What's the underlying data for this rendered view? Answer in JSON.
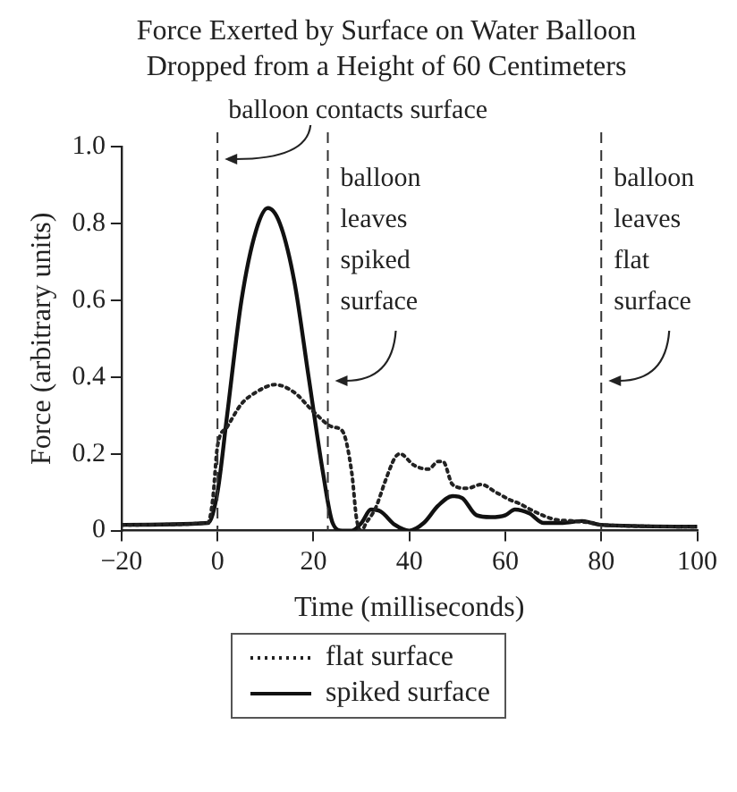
{
  "chart_data": {
    "type": "line",
    "title": "Force Exerted by Surface on Water Balloon Dropped from a Height of 60 Centimeters",
    "xlabel": "Time (milliseconds)",
    "ylabel": "Force (arbitrary units)",
    "xlim": [
      -20,
      100
    ],
    "xticks": [
      {
        "value": -20,
        "label": "−20"
      },
      0,
      20,
      40,
      60,
      80,
      100
    ],
    "ylim": [
      0,
      1
    ],
    "yticks": [
      0,
      0.2,
      0.4,
      0.6,
      0.8,
      {
        "value": 1,
        "label": "1.0"
      }
    ],
    "grid": false,
    "legend": "bottom",
    "marker": "none",
    "ref_lines": [
      {
        "axis": "x",
        "value": 0,
        "label": "balloon contacts surface",
        "line_style": "dashed",
        "color": "#333333"
      },
      {
        "axis": "x",
        "value": 23,
        "label": "balloon leaves spiked surface",
        "line_style": "dashed",
        "color": "#333333"
      },
      {
        "axis": "x",
        "value": 80,
        "label": "balloon leaves flat surface",
        "line_style": "dashed",
        "color": "#333333"
      }
    ],
    "series": [
      {
        "name": "flat surface",
        "color": "#222222",
        "line_style": "dotted",
        "x": [
          -20,
          -2,
          -1,
          0,
          2,
          5,
          8,
          12,
          16,
          20,
          24,
          26,
          28,
          29,
          30,
          31,
          33,
          35,
          37,
          38,
          41,
          44,
          46,
          47,
          49,
          52,
          55,
          58,
          61,
          63,
          66,
          70,
          74,
          78,
          80,
          100
        ],
        "values": [
          0.015,
          0.02,
          0.08,
          0.22,
          0.27,
          0.33,
          0.36,
          0.38,
          0.36,
          0.31,
          0.27,
          0.26,
          0.15,
          0.03,
          0,
          0.02,
          0.06,
          0.13,
          0.19,
          0.2,
          0.17,
          0.16,
          0.18,
          0.18,
          0.12,
          0.11,
          0.12,
          0.1,
          0.08,
          0.07,
          0.05,
          0.03,
          0.025,
          0.02,
          0.015,
          0.01
        ]
      },
      {
        "name": "spiked surface",
        "color": "#111111",
        "line_style": "solid",
        "x": [
          -20,
          -2,
          0,
          2,
          5,
          8,
          10.5,
          13,
          16,
          19,
          22,
          24,
          26,
          28,
          30,
          32,
          34,
          37,
          40,
          43,
          46,
          49,
          51,
          54,
          57,
          60,
          62,
          65,
          68,
          72,
          76,
          78,
          80,
          100
        ],
        "values": [
          0.015,
          0.02,
          0.1,
          0.3,
          0.6,
          0.78,
          0.84,
          0.8,
          0.65,
          0.4,
          0.15,
          0.02,
          0,
          0,
          0.02,
          0.055,
          0.05,
          0.015,
          0,
          0.02,
          0.065,
          0.09,
          0.085,
          0.04,
          0.035,
          0.04,
          0.055,
          0.045,
          0.02,
          0.02,
          0.025,
          0.02,
          0.015,
          0.01
        ]
      }
    ]
  }
}
